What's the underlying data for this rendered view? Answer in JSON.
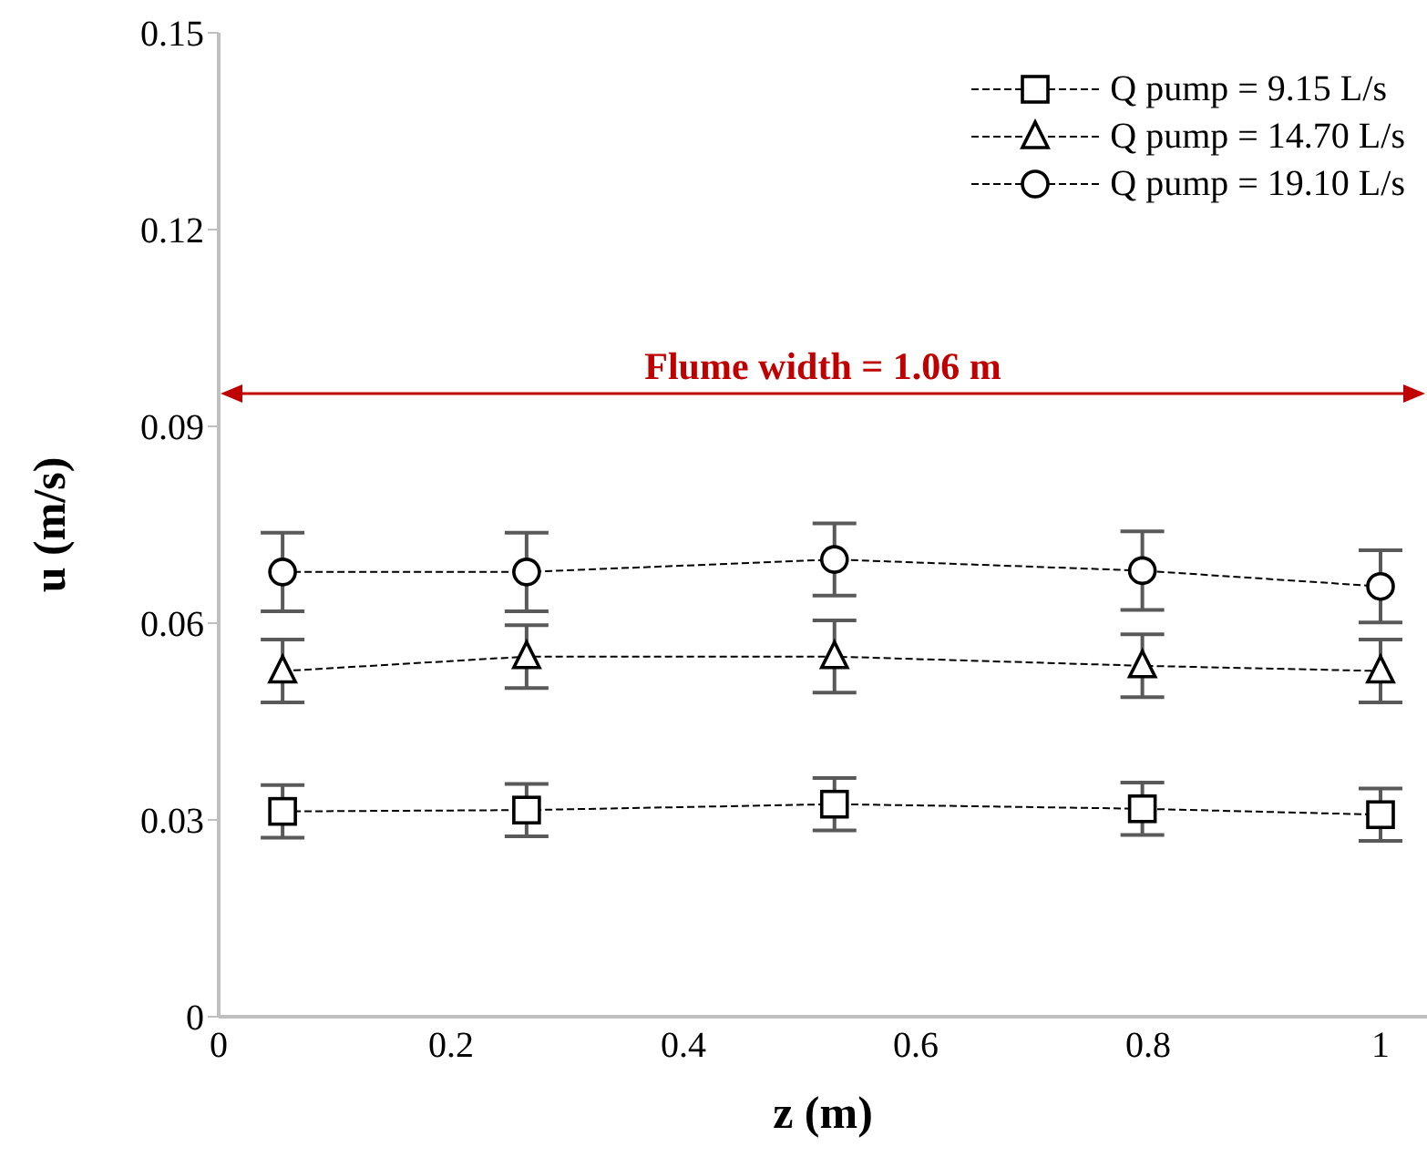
{
  "chart_data": {
    "type": "line",
    "xlabel": "z (m)",
    "ylabel": "u (m/s)",
    "x": [
      0.055,
      0.265,
      0.53,
      0.795,
      1.0
    ],
    "xlim": [
      0,
      1.04
    ],
    "xticks": [
      0,
      0.2,
      0.4,
      0.6,
      0.8,
      1
    ],
    "ylim": [
      0,
      0.15
    ],
    "yticks": [
      0,
      0.03,
      0.06,
      0.09,
      0.12,
      0.15
    ],
    "grid": false,
    "legend": "top right",
    "line_style": "dashed",
    "series": [
      {
        "name": "Q pump = 9.15 L/s",
        "color": "#000000",
        "marker": "square",
        "values": [
          0.0313,
          0.0315,
          0.0324,
          0.0317,
          0.0308
        ],
        "errors": [
          0.004,
          0.004,
          0.004,
          0.004,
          0.004
        ]
      },
      {
        "name": "Q pump = 14.70 L/s",
        "color": "#000000",
        "marker": "triangle",
        "values": [
          0.0527,
          0.0549,
          0.0549,
          0.0535,
          0.0527
        ],
        "errors": [
          0.0048,
          0.0048,
          0.0055,
          0.0048,
          0.0048
        ]
      },
      {
        "name": "Q pump = 19.10 L/s",
        "color": "#000000",
        "marker": "circle",
        "values": [
          0.0678,
          0.0678,
          0.0697,
          0.068,
          0.0656
        ],
        "errors": [
          0.006,
          0.006,
          0.0055,
          0.006,
          0.0055
        ]
      }
    ],
    "ref_lines": [
      {
        "axis": "y",
        "value": 0.095,
        "color": "#c00000"
      }
    ],
    "annotations": [
      "Flume width = 1.06 m"
    ]
  }
}
